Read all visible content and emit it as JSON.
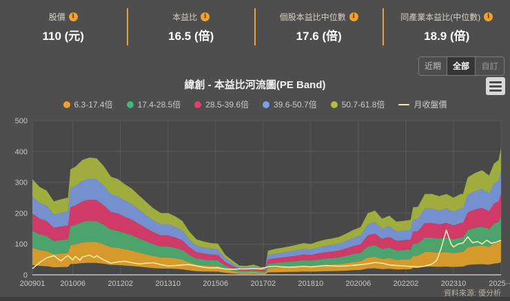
{
  "header": {
    "stats": [
      {
        "label": "股價",
        "value": "110 (元)"
      },
      {
        "label": "本益比",
        "value": "16.5 (倍)"
      },
      {
        "label": "個股本益比中位數",
        "value": "17.6 (倍)"
      },
      {
        "label": "同產業本益比(中位數)",
        "value": "18.9 (倍)"
      }
    ],
    "info_icon_glyph": "i"
  },
  "range_buttons": [
    {
      "label": "近期",
      "active": false
    },
    {
      "label": "全部",
      "active": true
    },
    {
      "label": "自訂",
      "active": false
    }
  ],
  "chart": {
    "title": "緯創 - 本益比河流圖(PE Band)"
  },
  "footer": {
    "source": "資料來源: 優分析"
  },
  "colors": {
    "page_bg": "#4e4e4e",
    "accent_orange": "#efa02f",
    "divider_orange": "#e8a23c"
  },
  "chart_data": {
    "type": "area",
    "title": "緯創 - 本益比河流圖(PE Band)",
    "xlim": [
      0,
      197
    ],
    "ylim": [
      0,
      500
    ],
    "y_ticks": [
      0,
      100,
      200,
      300,
      400,
      500
    ],
    "x_ticks": [
      {
        "m": 0,
        "label": "200901"
      },
      {
        "m": 17,
        "label": "201006"
      },
      {
        "m": 37,
        "label": "201202"
      },
      {
        "m": 57,
        "label": "201310"
      },
      {
        "m": 77,
        "label": "201506"
      },
      {
        "m": 97,
        "label": "201702"
      },
      {
        "m": 117,
        "label": "201810"
      },
      {
        "m": 137,
        "label": "202006"
      },
      {
        "m": 157,
        "label": "202202"
      },
      {
        "m": 177,
        "label": "202310"
      },
      {
        "m": 197,
        "label": "2025⋯"
      }
    ],
    "layout": {
      "plot_bg": "#484848",
      "grid_color": "#5a5a5a",
      "axis_color": "#a6a6a6",
      "tick_text_color": "#c9c9c9",
      "legend_position": "top-center",
      "grid": true
    },
    "band_multiples": [
      6.3,
      17.4,
      28.5,
      39.6,
      50.7,
      61.8
    ],
    "bands": [
      {
        "name": "6.3-17.4倍",
        "color": "#d59a2b",
        "legend_color": "#f0a12f"
      },
      {
        "name": "17.4-28.5倍",
        "color": "#4ca36c",
        "legend_color": "#41b97d"
      },
      {
        "name": "28.5-39.6倍",
        "color": "#cf3a66",
        "legend_color": "#e93b6e"
      },
      {
        "name": "39.6-50.7倍",
        "color": "#7590cf",
        "legend_color": "#7fa0e3"
      },
      {
        "name": "50.7-61.8倍",
        "color": "#9fad3e",
        "legend_color": "#b3bf3e"
      }
    ],
    "pe_top_line": {
      "comment": "value of the 61.8x PE line; lower band boundaries are proportional (multiple/61.8). x = months since 2009-01",
      "x": [
        0,
        3,
        6,
        9,
        12,
        15,
        16,
        18,
        21,
        24,
        27,
        30,
        33,
        36,
        39,
        42,
        45,
        48,
        51,
        54,
        57,
        60,
        63,
        66,
        69,
        72,
        75,
        78,
        81,
        84,
        87,
        90,
        93,
        96,
        98,
        99,
        102,
        105,
        108,
        111,
        114,
        117,
        120,
        123,
        126,
        129,
        132,
        135,
        138,
        141,
        144,
        147,
        150,
        153,
        156,
        159,
        160,
        162,
        165,
        166,
        168,
        171,
        174,
        177,
        180,
        181,
        183,
        186,
        189,
        192,
        194,
        196,
        197
      ],
      "values": [
        310,
        285,
        273,
        238,
        245,
        250,
        342,
        350,
        372,
        380,
        378,
        352,
        318,
        310,
        293,
        278,
        256,
        235,
        215,
        200,
        200,
        190,
        175,
        140,
        115,
        108,
        103,
        101,
        65,
        47,
        30,
        29,
        33,
        25,
        25,
        78,
        84,
        88,
        92,
        97,
        103,
        100,
        108,
        114,
        118,
        123,
        134,
        146,
        155,
        200,
        208,
        182,
        192,
        172,
        175,
        178,
        219,
        220,
        262,
        262,
        262,
        255,
        262,
        250,
        262,
        262,
        316,
        330,
        339,
        322,
        360,
        372,
        412
      ]
    },
    "price_line": {
      "name": "月收盤價",
      "color": "#f3eda8",
      "x": [
        0,
        2,
        4,
        6,
        9,
        12,
        14,
        15,
        17,
        18,
        20,
        21,
        24,
        26,
        27,
        30,
        33,
        36,
        39,
        42,
        45,
        48,
        51,
        54,
        57,
        60,
        63,
        66,
        69,
        72,
        75,
        78,
        81,
        84,
        87,
        90,
        93,
        96,
        99,
        102,
        105,
        108,
        111,
        114,
        117,
        120,
        123,
        126,
        129,
        132,
        135,
        138,
        141,
        144,
        147,
        150,
        153,
        156,
        159,
        162,
        165,
        168,
        170,
        172,
        174,
        176,
        177,
        179,
        181,
        183,
        185,
        187,
        189,
        191,
        193,
        195,
        197
      ],
      "values": [
        20,
        33,
        45,
        55,
        62,
        45,
        58,
        62,
        48,
        60,
        47,
        58,
        64,
        56,
        62,
        48,
        38,
        42,
        44,
        39,
        35,
        38,
        39,
        33,
        29,
        30,
        32,
        33,
        29,
        24,
        22,
        23,
        19,
        18,
        19,
        19,
        20,
        19,
        26,
        28,
        26,
        25,
        26,
        28,
        26,
        28,
        30,
        29,
        28,
        29,
        31,
        33,
        36,
        40,
        38,
        32,
        30,
        29,
        27,
        26,
        28,
        35,
        47,
        90,
        145,
        100,
        90,
        100,
        103,
        123,
        104,
        108,
        100,
        112,
        102,
        106,
        112
      ]
    }
  }
}
